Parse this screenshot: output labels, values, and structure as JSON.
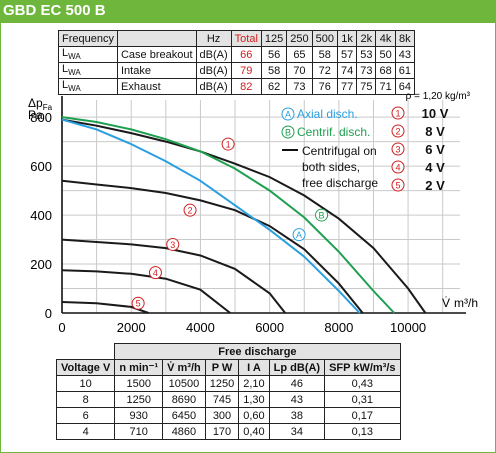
{
  "header": {
    "title": "GBD EC 500 B"
  },
  "sound_table": {
    "header": [
      "Frequency",
      "",
      "Hz",
      "Total",
      "125",
      "250",
      "500",
      "1k",
      "2k",
      "4k",
      "8k"
    ],
    "rows": [
      {
        "sym": "L",
        "sub": "WA",
        "name": "Case breakout",
        "unit": "dB(A)",
        "total": "66",
        "vals": [
          "56",
          "65",
          "58",
          "57",
          "53",
          "50",
          "43"
        ]
      },
      {
        "sym": "L",
        "sub": "WA",
        "name": "Intake",
        "unit": "dB(A)",
        "total": "79",
        "vals": [
          "58",
          "70",
          "72",
          "74",
          "73",
          "68",
          "61"
        ]
      },
      {
        "sym": "L",
        "sub": "WA",
        "name": "Exhaust",
        "unit": "dB(A)",
        "total": "82",
        "vals": [
          "62",
          "73",
          "76",
          "77",
          "75",
          "71",
          "64"
        ]
      }
    ]
  },
  "chart_data": {
    "type": "line",
    "ylabel_main": "Δp",
    "ylabel_sub": "Fa",
    "ylabel_unit": "Pa",
    "xlabel_main": "V̇",
    "xlabel_unit": "m³/h",
    "density_note": "ρ = 1,20 kg/m³",
    "xlim": [
      0,
      11500
    ],
    "ylim": [
      0,
      870
    ],
    "xticks": [
      "0",
      "2000",
      "4000",
      "6000",
      "8000",
      "10000"
    ],
    "yticks": [
      "0",
      "200",
      "400",
      "600",
      "800"
    ],
    "grid": true,
    "series": [
      {
        "name": "10 V",
        "style": "free",
        "color": "#1a1a1a",
        "x": [
          0,
          1000,
          2000,
          3000,
          4000,
          5000,
          6000,
          7000,
          8000,
          9000,
          10000,
          10500
        ],
        "y": [
          790,
          765,
          735,
          700,
          660,
          610,
          555,
          480,
          385,
          265,
          100,
          0
        ]
      },
      {
        "name": "8 V",
        "style": "free",
        "color": "#1a1a1a",
        "x": [
          0,
          1000,
          2000,
          3000,
          4000,
          5000,
          6000,
          7000,
          8000,
          8690
        ],
        "y": [
          540,
          525,
          510,
          490,
          460,
          420,
          355,
          260,
          120,
          0
        ]
      },
      {
        "name": "6 V",
        "style": "free",
        "color": "#1a1a1a",
        "x": [
          0,
          1000,
          2000,
          3000,
          4000,
          5000,
          6000,
          6450
        ],
        "y": [
          300,
          290,
          280,
          265,
          235,
          180,
          80,
          0
        ]
      },
      {
        "name": "4 V",
        "style": "free",
        "color": "#1a1a1a",
        "x": [
          0,
          1000,
          2000,
          3000,
          4000,
          4860
        ],
        "y": [
          175,
          170,
          160,
          140,
          95,
          0
        ]
      },
      {
        "name": "2 V",
        "style": "free",
        "color": "#1a1a1a",
        "x": [
          0,
          1000,
          2000,
          2500
        ],
        "y": [
          45,
          40,
          25,
          0
        ]
      },
      {
        "name": "Axial disch.",
        "style": "axial",
        "color": "#2a9fe0",
        "x": [
          0,
          1000,
          2000,
          3000,
          4000,
          5000,
          6000,
          7000,
          8000,
          8600
        ],
        "y": [
          790,
          750,
          690,
          620,
          540,
          440,
          340,
          230,
          90,
          0
        ]
      },
      {
        "name": "Centrif. disch.",
        "style": "centrif",
        "color": "#1ea050",
        "x": [
          0,
          1000,
          2000,
          3000,
          4000,
          5000,
          6000,
          7000,
          8000,
          9000,
          9600
        ],
        "y": [
          800,
          780,
          750,
          710,
          660,
          590,
          500,
          390,
          250,
          90,
          0
        ]
      }
    ],
    "circled_labels": [
      {
        "text": "1",
        "x": 4800,
        "y": 690,
        "color": "#d02020"
      },
      {
        "text": "2",
        "x": 3700,
        "y": 420,
        "color": "#d02020"
      },
      {
        "text": "3",
        "x": 3200,
        "y": 280,
        "color": "#d02020"
      },
      {
        "text": "4",
        "x": 2700,
        "y": 165,
        "color": "#d02020"
      },
      {
        "text": "5",
        "x": 2200,
        "y": 40,
        "color": "#d02020"
      },
      {
        "text": "A",
        "x": 6850,
        "y": 320,
        "color": "#2a9fe0"
      },
      {
        "text": "B",
        "x": 7500,
        "y": 400,
        "color": "#1ea050"
      }
    ],
    "legend": {
      "position": "top-right",
      "axial": {
        "mark": "A",
        "label": "Axial disch.",
        "color": "#2a9fe0"
      },
      "centrif": {
        "mark": "B",
        "label": "Centrif. disch.",
        "color": "#1ea050"
      },
      "free": {
        "label_lines": [
          "Centrifugal on",
          "both sides,",
          "free discharge"
        ]
      },
      "voltages": [
        {
          "mark": "1",
          "label": "10 V"
        },
        {
          "mark": "2",
          "label": "8 V"
        },
        {
          "mark": "3",
          "label": "6 V"
        },
        {
          "mark": "4",
          "label": "4 V"
        },
        {
          "mark": "5",
          "label": "2 V"
        }
      ],
      "voltage_color": "#d02020"
    }
  },
  "performance_table": {
    "group_title": "Free discharge",
    "headers": [
      "Voltage V",
      "n min⁻¹",
      "V̇ m³/h",
      "P W",
      "I A",
      "Lp dB(A)",
      "SFP kW/m³/s"
    ],
    "rows": [
      [
        "10",
        "1500",
        "10500",
        "1250",
        "2,10",
        "46",
        "0,43"
      ],
      [
        "8",
        "1250",
        "8690",
        "745",
        "1,30",
        "43",
        "0,31"
      ],
      [
        "6",
        "930",
        "6450",
        "300",
        "0,60",
        "38",
        "0,17"
      ],
      [
        "4",
        "710",
        "4860",
        "170",
        "0,40",
        "34",
        "0,13"
      ]
    ]
  }
}
